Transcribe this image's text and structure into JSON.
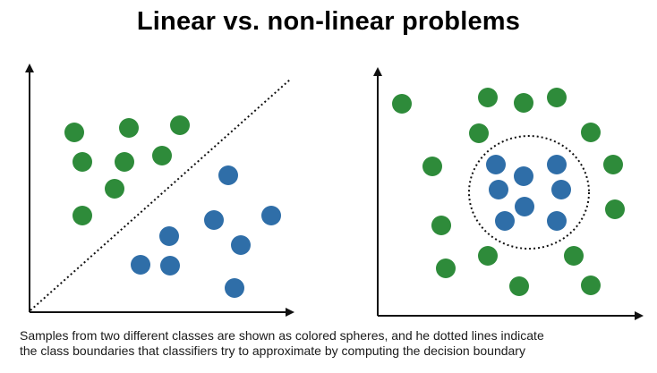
{
  "title": "Linear vs. non-linear problems",
  "caption": {
    "line1": "Samples from two different classes are shown as colored spheres, and he dotted lines indicate",
    "line2": "the class boundaries that classifiers try to approximate by computing the decision boundary"
  },
  "colors": {
    "class_a": "#2e8b3a",
    "class_b": "#2f6ea8",
    "axis": "#111111",
    "boundary": "#111111"
  }
}
